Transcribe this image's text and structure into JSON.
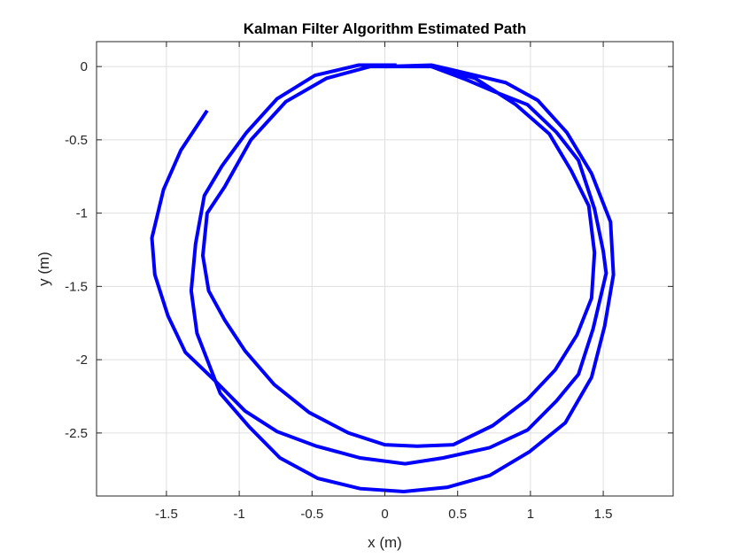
{
  "chart_data": {
    "type": "line",
    "title": "Kalman Filter Algorithm Estimated Path",
    "xlabel": "x (m)",
    "ylabel": "y (m)",
    "xlim": [
      -1.98,
      1.98
    ],
    "ylim": [
      -2.93,
      0.17
    ],
    "xticks": [
      -1.5,
      -1,
      -0.5,
      0,
      0.5,
      1,
      1.5
    ],
    "xtick_labels": [
      "-1.5",
      "-1",
      "-0.5",
      "0",
      "0.5",
      "1",
      "1.5"
    ],
    "yticks": [
      0,
      -0.5,
      -1,
      -1.5,
      -2,
      -2.5
    ],
    "ytick_labels": [
      "0",
      "-0.5",
      "-1",
      "-1.5",
      "-2",
      "-2.5"
    ],
    "grid": true,
    "series": [
      {
        "color": "#0000ff",
        "x": [
          0.0,
          0.32,
          0.62,
          0.9,
          1.13,
          1.28,
          1.4,
          1.44,
          1.42,
          1.32,
          1.17,
          0.98,
          0.74,
          0.47,
          0.22,
          0.0,
          -0.25,
          -0.52,
          -0.76,
          -0.96,
          -1.1,
          -1.21,
          -1.25,
          -1.22,
          -1.1,
          -0.92,
          -0.68,
          -0.4,
          -0.1,
          0.1,
          0.32,
          0.56,
          0.75,
          0.98,
          1.18,
          1.33,
          1.44,
          1.5,
          1.52,
          1.43,
          1.33,
          1.18,
          0.98,
          0.72,
          0.4,
          0.14,
          -0.17,
          -0.47,
          -0.74,
          -0.96,
          -1.17,
          -1.37,
          -1.49,
          -1.58,
          -1.6,
          -1.52,
          -1.4,
          -1.22
        ],
        "y": [
          0.0,
          0.0,
          -0.08,
          -0.26,
          -0.46,
          -0.71,
          -0.95,
          -1.27,
          -1.58,
          -1.83,
          -2.07,
          -2.27,
          -2.45,
          -2.58,
          -2.59,
          -2.58,
          -2.5,
          -2.36,
          -2.17,
          -1.94,
          -1.73,
          -1.53,
          -1.29,
          -1.0,
          -0.82,
          -0.5,
          -0.24,
          -0.08,
          0.0,
          0.0,
          0.0,
          -0.09,
          -0.17,
          -0.26,
          -0.45,
          -0.64,
          -0.97,
          -1.26,
          -1.41,
          -1.79,
          -2.1,
          -2.28,
          -2.48,
          -2.6,
          -2.67,
          -2.71,
          -2.67,
          -2.59,
          -2.49,
          -2.35,
          -2.14,
          -1.95,
          -1.7,
          -1.42,
          -1.17,
          -0.84,
          -0.57,
          -0.3
        ]
      },
      {
        "color": "#0000ff",
        "x": [
          0.0,
          0.32,
          0.58,
          0.83,
          1.05,
          1.25,
          1.42,
          1.55,
          1.57,
          1.51,
          1.42,
          1.24,
          0.99,
          0.72,
          0.43,
          0.13,
          -0.17,
          -0.46,
          -0.72,
          -0.93,
          -1.13,
          -1.29,
          -1.33,
          -1.3,
          -1.24,
          -1.12,
          -0.95,
          -0.74,
          -0.48,
          -0.18,
          0.08
        ],
        "y": [
          0.0,
          0.01,
          -0.05,
          -0.11,
          -0.23,
          -0.45,
          -0.73,
          -1.06,
          -1.42,
          -1.77,
          -2.12,
          -2.43,
          -2.63,
          -2.79,
          -2.87,
          -2.9,
          -2.88,
          -2.81,
          -2.67,
          -2.46,
          -2.23,
          -1.82,
          -1.53,
          -1.21,
          -0.88,
          -0.68,
          -0.45,
          -0.22,
          -0.06,
          0.01,
          0.01
        ]
      }
    ]
  }
}
